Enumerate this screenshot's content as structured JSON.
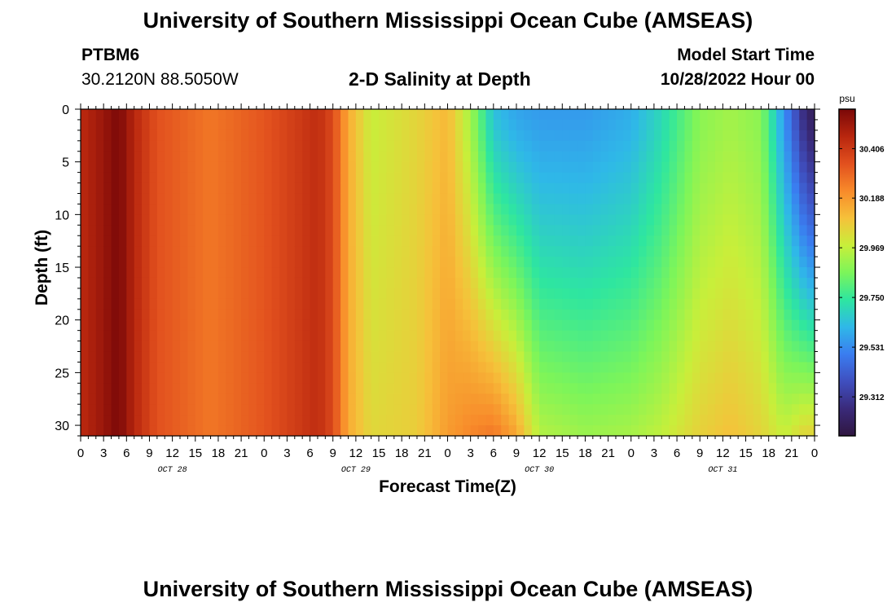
{
  "header": {
    "title": "University of Southern Mississippi Ocean Cube (AMSEAS)",
    "station_id": "PTBM6",
    "station_coords": "30.2120N  88.5050W",
    "plot_title": "2-D Salinity at Depth",
    "start_label": "Model Start Time",
    "start_value": "10/28/2022 Hour 00"
  },
  "footer": {
    "title": "University of Southern Mississippi Ocean Cube (AMSEAS)"
  },
  "chart_data": {
    "type": "heatmap",
    "title": "2-D Salinity at Depth",
    "xlabel": "Forecast Time(Z)",
    "ylabel": "Depth (ft)",
    "x_tick_labels": [
      "0",
      "3",
      "6",
      "9",
      "12",
      "15",
      "18",
      "21",
      "0",
      "3",
      "6",
      "9",
      "12",
      "15",
      "18",
      "21",
      "0",
      "3",
      "6",
      "9",
      "12",
      "15",
      "18",
      "21",
      "0",
      "3",
      "6",
      "9",
      "12",
      "15",
      "18",
      "21",
      "0"
    ],
    "x_hours": [
      0,
      3,
      6,
      9,
      12,
      15,
      18,
      21,
      24,
      27,
      30,
      33,
      36,
      39,
      42,
      45,
      48,
      51,
      54,
      57,
      60,
      63,
      66,
      69,
      72,
      75,
      78,
      81,
      84,
      87,
      90,
      93,
      96
    ],
    "day_labels": [
      {
        "text": "OCT 28",
        "hour": 12
      },
      {
        "text": "OCT 29",
        "hour": 36
      },
      {
        "text": "OCT 30",
        "hour": 60
      },
      {
        "text": "OCT 31",
        "hour": 84
      }
    ],
    "xlim": [
      0,
      96
    ],
    "y_ticks": [
      0,
      5,
      10,
      15,
      20,
      25,
      30
    ],
    "ylim": [
      0,
      31
    ],
    "y_inverted": true,
    "colorbar": {
      "unit": "psu",
      "tick_labels": [
        "30.406",
        "30.188",
        "29.969",
        "29.750",
        "29.531",
        "29.312"
      ],
      "tick_values": [
        30.406,
        30.188,
        29.969,
        29.75,
        29.531,
        29.312
      ],
      "range": [
        29.14,
        30.58
      ],
      "colormap": [
        "#2f1640",
        "#3a2a7a",
        "#3f4fbf",
        "#3a7df0",
        "#2fb8e8",
        "#2ee6a0",
        "#7cf55a",
        "#c8ef3a",
        "#f6c13a",
        "#f88a2a",
        "#e2501e",
        "#b8260e",
        "#7a0808"
      ]
    },
    "salinity_profile": [
      {
        "hour": 0,
        "top": 30.45,
        "bottom": 30.45
      },
      {
        "hour": 3,
        "top": 30.52,
        "bottom": 30.52
      },
      {
        "hour": 5,
        "top": 30.58,
        "bottom": 30.58
      },
      {
        "hour": 7,
        "top": 30.46,
        "bottom": 30.46
      },
      {
        "hour": 10,
        "top": 30.34,
        "bottom": 30.34
      },
      {
        "hour": 17,
        "top": 30.26,
        "bottom": 30.26
      },
      {
        "hour": 24,
        "top": 30.33,
        "bottom": 30.33
      },
      {
        "hour": 31,
        "top": 30.44,
        "bottom": 30.44
      },
      {
        "hour": 33,
        "top": 30.36,
        "bottom": 30.36
      },
      {
        "hour": 35,
        "top": 30.15,
        "bottom": 30.15
      },
      {
        "hour": 38,
        "top": 29.98,
        "bottom": 30.04
      },
      {
        "hour": 44,
        "top": 30.05,
        "bottom": 30.07
      },
      {
        "hour": 48,
        "top": 30.12,
        "bottom": 30.18
      },
      {
        "hour": 51,
        "top": 29.92,
        "bottom": 30.23
      },
      {
        "hour": 54,
        "top": 29.64,
        "bottom": 30.26
      },
      {
        "hour": 57,
        "top": 29.58,
        "bottom": 30.16
      },
      {
        "hour": 60,
        "top": 29.56,
        "bottom": 29.95
      },
      {
        "hour": 66,
        "top": 29.56,
        "bottom": 29.91
      },
      {
        "hour": 72,
        "top": 29.6,
        "bottom": 29.93
      },
      {
        "hour": 76,
        "top": 29.7,
        "bottom": 29.97
      },
      {
        "hour": 81,
        "top": 29.88,
        "bottom": 30.06
      },
      {
        "hour": 85,
        "top": 29.92,
        "bottom": 30.1
      },
      {
        "hour": 89,
        "top": 29.88,
        "bottom": 30.05
      },
      {
        "hour": 92,
        "top": 29.55,
        "bottom": 29.98
      },
      {
        "hour": 95,
        "top": 29.22,
        "bottom": 30.06
      },
      {
        "hour": 96,
        "top": 29.2,
        "bottom": 30.05
      }
    ]
  }
}
